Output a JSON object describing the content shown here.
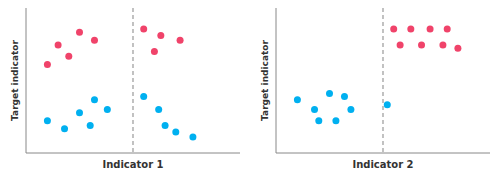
{
  "chart_data": [
    {
      "type": "scatter",
      "x_label": "Indicator 1",
      "y_label": "Target indicator",
      "xlim": [
        0,
        10
      ],
      "ylim": [
        1.5,
        10.5
      ],
      "tick_labels": false,
      "marker": "circle",
      "vline_x": 5.0,
      "series": [
        {
          "color": "#F0436A",
          "x": [
            1.5,
            2.5,
            3.2,
            2.0,
            1.0,
            5.5,
            6.3,
            7.2,
            6.0
          ],
          "values": [
            8.2,
            9.0,
            8.5,
            7.5,
            7.0,
            9.2,
            8.8,
            8.5,
            7.8
          ]
        },
        {
          "color": "#00B0F0",
          "x": [
            1.0,
            1.8,
            2.5,
            3.2,
            3.8,
            3.0,
            5.5,
            6.2,
            6.5,
            7.0,
            7.8
          ],
          "values": [
            3.5,
            3.0,
            4.0,
            4.8,
            4.2,
            3.2,
            5.0,
            4.2,
            3.2,
            2.8,
            2.5
          ]
        }
      ]
    },
    {
      "type": "scatter",
      "x_label": "Indicator 2",
      "y_label": "Target indicator",
      "xlim": [
        0,
        10
      ],
      "ylim": [
        1.5,
        10.5
      ],
      "tick_labels": false,
      "marker": "circle",
      "vline_x": 5.0,
      "series": [
        {
          "color": "#F0436A",
          "x": [
            5.5,
            6.3,
            7.2,
            8.0,
            5.8,
            6.8,
            7.8,
            8.5
          ],
          "values": [
            9.2,
            9.2,
            9.2,
            9.2,
            8.2,
            8.2,
            8.2,
            8.0
          ]
        },
        {
          "color": "#00B0F0",
          "x": [
            1.0,
            1.8,
            2.5,
            3.2,
            3.5,
            2.8,
            2.0,
            5.2
          ],
          "values": [
            4.8,
            4.2,
            5.2,
            5.0,
            4.2,
            3.5,
            3.5,
            4.5
          ]
        }
      ]
    }
  ]
}
